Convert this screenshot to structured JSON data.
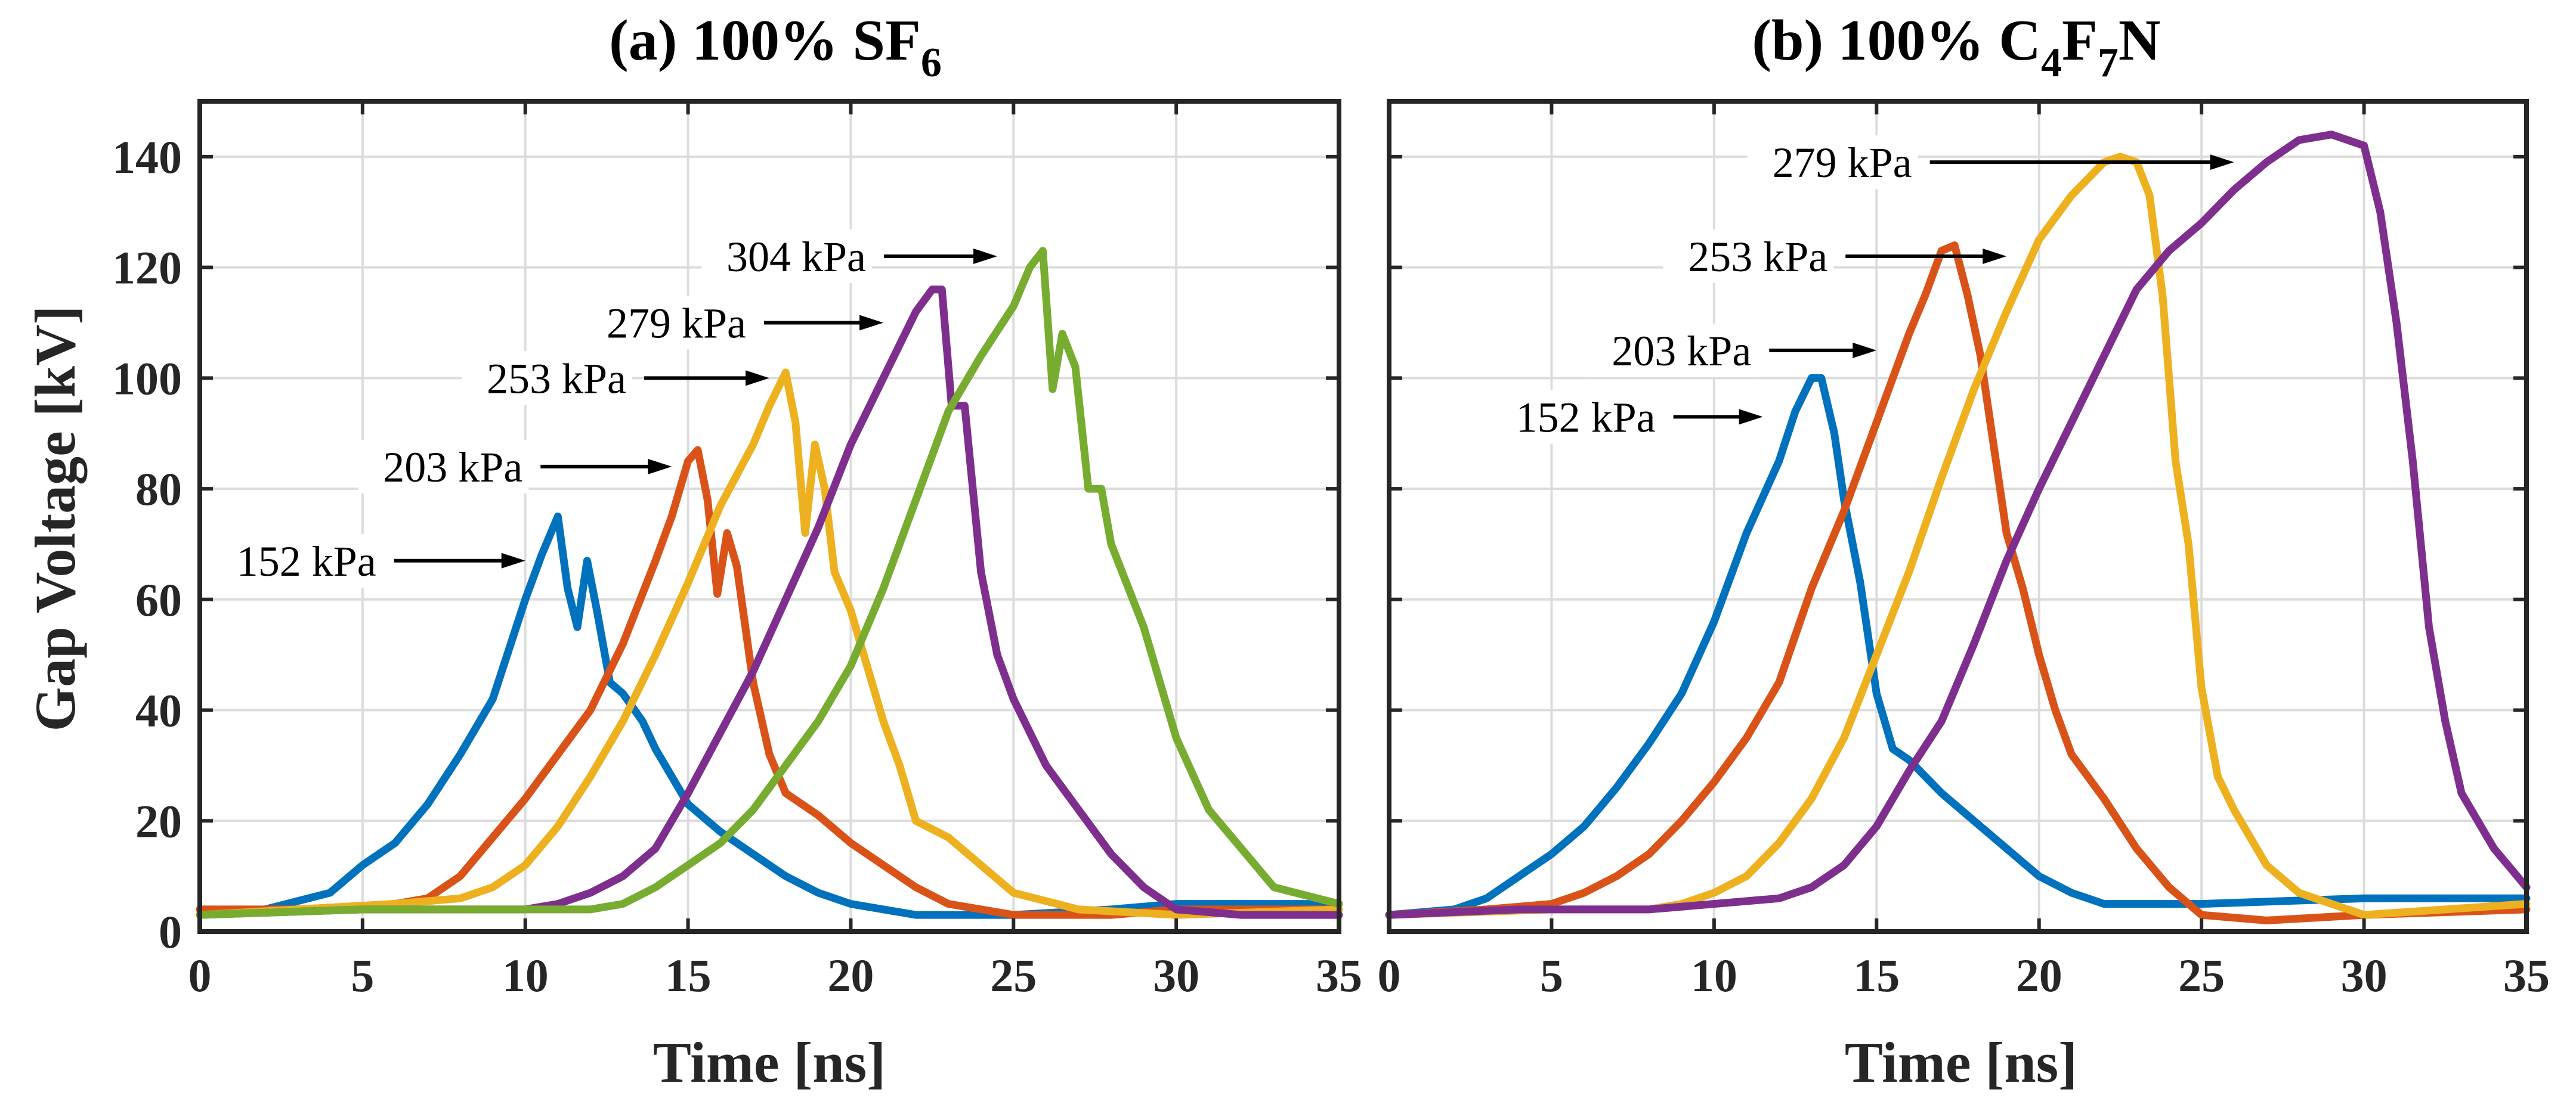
{
  "chart_data": [
    {
      "type": "line",
      "panel_id": "a",
      "title_parts": [
        "(a) 100% SF",
        "6"
      ],
      "xlabel": "Time [ns]",
      "ylabel": "Gap Voltage [kV]",
      "xlim": [
        0,
        35
      ],
      "ylim": [
        0,
        150
      ],
      "xticks": [
        0,
        5,
        10,
        15,
        20,
        25,
        30,
        35
      ],
      "yticks": [
        0,
        20,
        40,
        60,
        80,
        100,
        120,
        140
      ],
      "grid": true,
      "series": [
        {
          "name": "152 kPa",
          "color": "#0072BD",
          "x": [
            0,
            2,
            4,
            5,
            6,
            7,
            8,
            9,
            10,
            10.5,
            11,
            11.3,
            11.6,
            11.9,
            12.2,
            12.6,
            13,
            13.6,
            14,
            15,
            16,
            17,
            18,
            19,
            20,
            21,
            22,
            25,
            28,
            30,
            35
          ],
          "y": [
            3,
            4,
            7,
            12,
            16,
            23,
            32,
            42,
            60,
            68,
            75,
            62,
            55,
            67,
            58,
            45,
            43,
            38,
            33,
            23,
            18,
            14,
            10,
            7,
            5,
            4,
            3,
            3,
            4,
            5,
            5
          ]
        },
        {
          "name": "203 kPa",
          "color": "#D95319",
          "x": [
            0,
            3,
            6,
            7,
            8,
            9,
            10,
            11,
            12,
            13,
            14,
            14.5,
            15,
            15.3,
            15.6,
            15.9,
            16.2,
            16.5,
            17,
            17.5,
            18,
            19,
            20,
            21,
            22,
            23,
            25,
            28,
            30,
            35
          ],
          "y": [
            4,
            4,
            5,
            6,
            10,
            17,
            24,
            32,
            40,
            52,
            67,
            75,
            85,
            87,
            78,
            61,
            72,
            66,
            45,
            32,
            25,
            21,
            16,
            12,
            8,
            5,
            3,
            3,
            4,
            4
          ]
        },
        {
          "name": "253 kPa",
          "color": "#EDB120",
          "x": [
            0,
            3,
            6,
            8,
            9,
            10,
            11,
            12,
            13,
            14,
            15,
            16,
            17,
            17.5,
            18,
            18.3,
            18.6,
            18.9,
            19.2,
            19.5,
            20,
            20.5,
            21,
            21.5,
            22,
            23,
            24,
            25,
            27,
            30,
            35
          ],
          "y": [
            3,
            4,
            5,
            6,
            8,
            12,
            19,
            28,
            38,
            50,
            63,
            77,
            88,
            95,
            101,
            92,
            72,
            88,
            80,
            65,
            58,
            48,
            38,
            30,
            20,
            17,
            12,
            7,
            4,
            3,
            4
          ]
        },
        {
          "name": "279 kPa",
          "color": "#7E2F8E",
          "x": [
            0,
            5,
            9,
            10,
            11,
            12,
            13,
            14,
            15,
            16,
            17,
            18,
            19,
            20,
            21,
            22,
            22.5,
            22.8,
            23.1,
            23.5,
            24,
            24.5,
            25,
            26,
            27,
            28,
            29,
            30,
            32,
            35
          ],
          "y": [
            3,
            4,
            4,
            4,
            5,
            7,
            10,
            15,
            25,
            36,
            47,
            60,
            73,
            88,
            100,
            112,
            116,
            116,
            95,
            95,
            65,
            50,
            42,
            30,
            22,
            14,
            8,
            4,
            3,
            3
          ]
        },
        {
          "name": "304 kPa",
          "color": "#77AC30",
          "x": [
            0,
            5,
            10,
            12,
            13,
            14,
            15,
            16,
            17,
            18,
            19,
            20,
            21,
            22,
            23,
            24,
            25,
            25.5,
            25.9,
            26.2,
            26.5,
            26.9,
            27.3,
            27.7,
            28,
            29,
            30,
            31,
            32,
            33,
            35
          ],
          "y": [
            3,
            4,
            4,
            4,
            5,
            8,
            12,
            16,
            22,
            30,
            38,
            48,
            62,
            78,
            94,
            104,
            113,
            120,
            123,
            98,
            108,
            102,
            80,
            80,
            70,
            55,
            35,
            22,
            15,
            8,
            5
          ]
        }
      ],
      "annotations": [
        {
          "text": "152 kPa",
          "target": [
            10.0,
            67
          ]
        },
        {
          "text": "203 kPa",
          "target": [
            14.5,
            84
          ]
        },
        {
          "text": "253 kPa",
          "target": [
            17.5,
            100
          ]
        },
        {
          "text": "279 kPa",
          "target": [
            21.0,
            110
          ]
        },
        {
          "text": "304 kPa",
          "target": [
            24.5,
            122
          ]
        }
      ]
    },
    {
      "type": "line",
      "panel_id": "b",
      "title_parts": [
        "(b) 100% C",
        "4",
        "F",
        "7",
        "N"
      ],
      "xlabel": "Time [ns]",
      "ylabel": "",
      "xlim": [
        0,
        35
      ],
      "ylim": [
        0,
        150
      ],
      "xticks": [
        0,
        5,
        10,
        15,
        20,
        25,
        30,
        35
      ],
      "yticks": [
        0,
        20,
        40,
        60,
        80,
        100,
        120,
        140
      ],
      "grid": true,
      "series": [
        {
          "name": "152 kPa",
          "color": "#0072BD",
          "x": [
            0,
            2,
            3,
            4,
            5,
            6,
            7,
            8,
            9,
            10,
            11,
            12,
            12.5,
            13,
            13.3,
            13.7,
            14,
            14.5,
            15,
            15.5,
            16,
            17,
            18,
            19,
            20,
            21,
            22,
            25,
            30,
            35
          ],
          "y": [
            3,
            4,
            6,
            10,
            14,
            19,
            26,
            34,
            43,
            56,
            72,
            85,
            94,
            100,
            100,
            90,
            78,
            63,
            43,
            33,
            31,
            25,
            20,
            15,
            10,
            7,
            5,
            5,
            6,
            6
          ]
        },
        {
          "name": "203 kPa",
          "color": "#D95319",
          "x": [
            0,
            3,
            5,
            6,
            7,
            8,
            9,
            10,
            11,
            12,
            13,
            14,
            15,
            16,
            16.5,
            17,
            17.4,
            17.8,
            18.2,
            18.6,
            19,
            19.5,
            20,
            20.5,
            21,
            22,
            23,
            24,
            25,
            27,
            30,
            35
          ],
          "y": [
            3,
            4,
            5,
            7,
            10,
            14,
            20,
            27,
            35,
            45,
            62,
            76,
            92,
            108,
            115,
            123,
            124,
            115,
            104,
            88,
            72,
            62,
            50,
            40,
            32,
            24,
            15,
            8,
            3,
            2,
            3,
            4
          ]
        },
        {
          "name": "253 kPa",
          "color": "#EDB120",
          "x": [
            0,
            5,
            8,
            9,
            10,
            11,
            12,
            13,
            14,
            15,
            16,
            17,
            18,
            19,
            20,
            21,
            22,
            22.5,
            23,
            23.4,
            23.8,
            24.2,
            24.6,
            25,
            25.5,
            26,
            27,
            28,
            30,
            35
          ],
          "y": [
            3,
            4,
            4,
            5,
            7,
            10,
            16,
            24,
            35,
            50,
            65,
            82,
            98,
            112,
            125,
            133,
            139,
            140,
            139,
            133,
            115,
            85,
            70,
            44,
            28,
            22,
            12,
            7,
            3,
            5
          ]
        },
        {
          "name": "279 kPa",
          "color": "#7E2F8E",
          "x": [
            0,
            4,
            8,
            10,
            12,
            13,
            14,
            15,
            16,
            17,
            18,
            19,
            20,
            21,
            22,
            23,
            24,
            25,
            26,
            27,
            28,
            29,
            29.5,
            30,
            30.5,
            31,
            31.5,
            32,
            32.5,
            33,
            34,
            35
          ],
          "y": [
            3,
            4,
            4,
            5,
            6,
            8,
            12,
            19,
            29,
            38,
            52,
            67,
            80,
            92,
            104,
            116,
            123,
            128,
            134,
            139,
            143,
            144,
            143,
            142,
            130,
            110,
            85,
            55,
            38,
            25,
            15,
            8
          ]
        }
      ],
      "annotations": [
        {
          "text": "152 kPa",
          "target": [
            11.5,
            93
          ]
        },
        {
          "text": "203 kPa",
          "target": [
            15.0,
            105
          ]
        },
        {
          "text": "253 kPa",
          "target": [
            19.0,
            122
          ]
        },
        {
          "text": "279 kPa",
          "target": [
            26.0,
            139
          ]
        }
      ]
    }
  ]
}
